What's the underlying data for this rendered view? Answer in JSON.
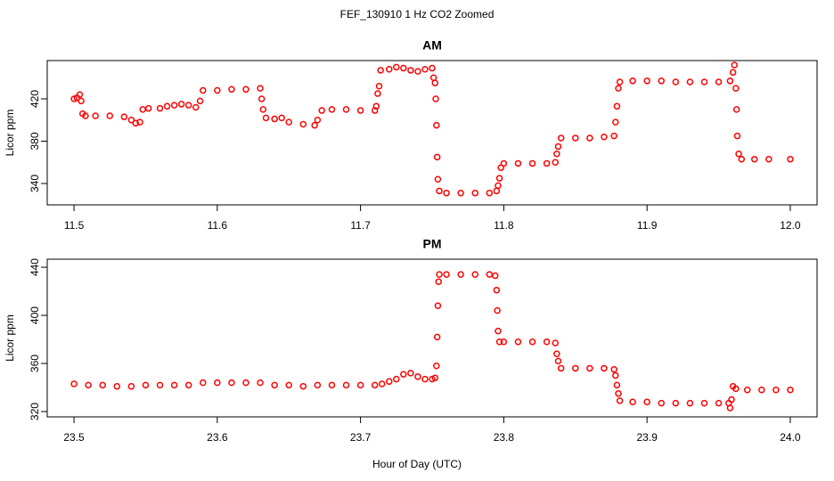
{
  "title": "FEF_130910  1 Hz CO2 Zoomed",
  "xlabel": "Hour of Day (UTC)",
  "chart_data": [
    {
      "type": "scatter",
      "title": "AM",
      "ylabel": "Licor ppm",
      "color": "#ff0000",
      "xlim": [
        11.4813,
        12.0187
      ],
      "ylim": [
        319.8,
        456.2
      ],
      "xticks": [
        11.5,
        11.6,
        11.7,
        11.8,
        11.9,
        {
          "value": 12,
          "label": "12.0"
        }
      ],
      "yticks": [
        340,
        380,
        420
      ],
      "x": [
        11.5,
        11.502,
        11.504,
        11.505,
        11.506,
        11.508,
        11.515,
        11.525,
        11.535,
        11.54,
        11.543,
        11.546,
        11.548,
        11.552,
        11.56,
        11.565,
        11.57,
        11.575,
        11.58,
        11.585,
        11.588,
        11.59,
        11.6,
        11.61,
        11.62,
        11.63,
        11.631,
        11.632,
        11.634,
        11.64,
        11.645,
        11.65,
        11.66,
        11.668,
        11.67,
        11.673,
        11.68,
        11.69,
        11.7,
        11.71,
        11.711,
        11.712,
        11.713,
        11.714,
        11.72,
        11.725,
        11.73,
        11.735,
        11.74,
        11.745,
        11.75,
        11.751,
        11.752,
        11.7525,
        11.753,
        11.7535,
        11.754,
        11.755,
        11.76,
        11.77,
        11.78,
        11.79,
        11.795,
        11.796,
        11.797,
        11.798,
        11.8,
        11.81,
        11.82,
        11.83,
        11.836,
        11.837,
        11.838,
        11.84,
        11.85,
        11.86,
        11.87,
        11.877,
        11.878,
        11.879,
        11.88,
        11.881,
        11.89,
        11.9,
        11.91,
        11.92,
        11.93,
        11.94,
        11.95,
        11.958,
        11.96,
        11.961,
        11.962,
        11.9625,
        11.963,
        11.964,
        11.966,
        11.975,
        11.985,
        12.0
      ],
      "values": [
        420,
        421,
        424,
        418,
        406,
        404,
        404,
        404,
        403,
        400,
        397,
        398,
        410,
        411,
        411,
        413,
        414,
        415,
        414,
        412,
        418,
        428,
        428,
        429,
        429,
        430,
        420,
        410,
        402,
        401,
        402,
        398,
        396,
        395,
        400,
        409,
        410,
        410,
        409,
        409,
        413,
        425,
        432,
        447,
        448,
        450,
        449,
        447,
        446,
        448,
        449,
        440,
        435,
        420,
        395,
        365,
        344,
        333,
        331,
        331,
        331,
        331,
        333,
        338,
        345,
        355,
        359,
        359,
        359,
        359,
        360,
        368,
        375,
        383,
        383,
        383,
        384,
        385,
        398,
        413,
        430,
        436,
        437,
        437,
        437,
        436,
        436,
        436,
        436,
        437,
        445,
        452,
        430,
        410,
        385,
        368,
        363,
        363,
        363,
        363
      ]
    },
    {
      "type": "scatter",
      "title": "PM",
      "ylabel": "Licor ppm",
      "color": "#ff0000",
      "xlim": [
        23.4813,
        24.0187
      ],
      "ylim": [
        315.6,
        446.7
      ],
      "xticks": [
        23.5,
        23.6,
        23.7,
        23.8,
        23.9,
        {
          "value": 24,
          "label": "24.0"
        }
      ],
      "yticks": [
        320,
        360,
        400,
        440
      ],
      "x": [
        23.5,
        23.51,
        23.52,
        23.53,
        23.54,
        23.55,
        23.56,
        23.57,
        23.58,
        23.59,
        23.6,
        23.61,
        23.62,
        23.63,
        23.64,
        23.65,
        23.66,
        23.67,
        23.68,
        23.69,
        23.7,
        23.71,
        23.715,
        23.72,
        23.725,
        23.73,
        23.735,
        23.74,
        23.745,
        23.75,
        23.752,
        23.753,
        23.7535,
        23.754,
        23.7545,
        23.755,
        23.76,
        23.77,
        23.78,
        23.79,
        23.794,
        23.795,
        23.7955,
        23.796,
        23.797,
        23.8,
        23.81,
        23.82,
        23.83,
        23.836,
        23.837,
        23.838,
        23.84,
        23.85,
        23.86,
        23.87,
        23.877,
        23.878,
        23.879,
        23.88,
        23.881,
        23.89,
        23.9,
        23.91,
        23.92,
        23.93,
        23.94,
        23.95,
        23.957,
        23.958,
        23.959,
        23.96,
        23.962,
        23.97,
        23.98,
        23.99,
        24.0
      ],
      "values": [
        343,
        342,
        342,
        341,
        341,
        342,
        342,
        342,
        342,
        344,
        344,
        344,
        344,
        344,
        342,
        342,
        341,
        342,
        342,
        342,
        342,
        342,
        343,
        345,
        347,
        351,
        352,
        349,
        347,
        347,
        348,
        358,
        382,
        408,
        428,
        434,
        434,
        434,
        434,
        434,
        433,
        421,
        404,
        387,
        378,
        378,
        378,
        378,
        378,
        377,
        368,
        362,
        356,
        356,
        356,
        356,
        355,
        350,
        342,
        335,
        329,
        328,
        328,
        327,
        327,
        327,
        327,
        327,
        327,
        323,
        330,
        341,
        339,
        338,
        338,
        338,
        338
      ]
    }
  ]
}
